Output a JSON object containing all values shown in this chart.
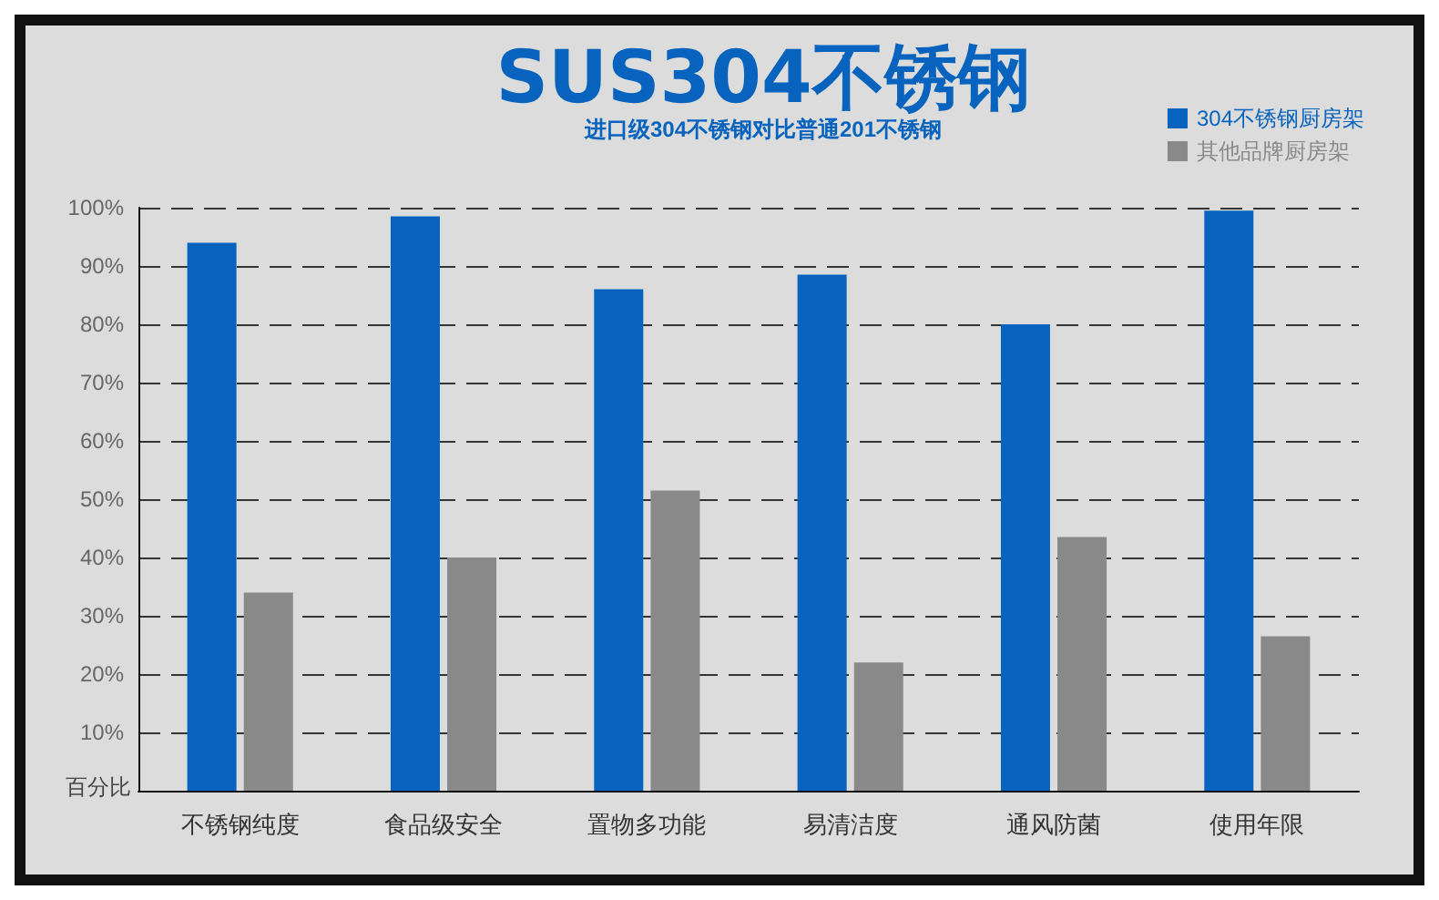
{
  "chart_data": {
    "type": "bar",
    "title": "SUS304不锈钢",
    "subtitle": "进口级304不锈钢对比普通201不锈钢",
    "ylabel": "百分比",
    "categories": [
      "不锈钢纯度",
      "食品级安全",
      "置物多功能",
      "易清洁度",
      "通风防菌",
      "使用年限"
    ],
    "series": [
      {
        "name": "304不锈钢厨房架",
        "color": "#0763bd",
        "values": [
          94,
          98.5,
          86,
          88.5,
          80,
          99.5
        ]
      },
      {
        "name": "其他品牌厨房架",
        "color": "#898989",
        "values": [
          34,
          40,
          51.5,
          22,
          43.5,
          26.5
        ]
      }
    ],
    "ylim": [
      0,
      100
    ],
    "yticks": [
      {
        "value": 10,
        "label": "10%"
      },
      {
        "value": 20,
        "label": "20%"
      },
      {
        "value": 30,
        "label": "30%"
      },
      {
        "value": 40,
        "label": "40%"
      },
      {
        "value": 50,
        "label": "50%"
      },
      {
        "value": 60,
        "label": "60%"
      },
      {
        "value": 70,
        "label": "70%"
      },
      {
        "value": 80,
        "label": "80%"
      },
      {
        "value": 90,
        "label": "90%"
      },
      {
        "value": 100,
        "label": "100%"
      }
    ],
    "grid": "y",
    "legend": "top right"
  }
}
